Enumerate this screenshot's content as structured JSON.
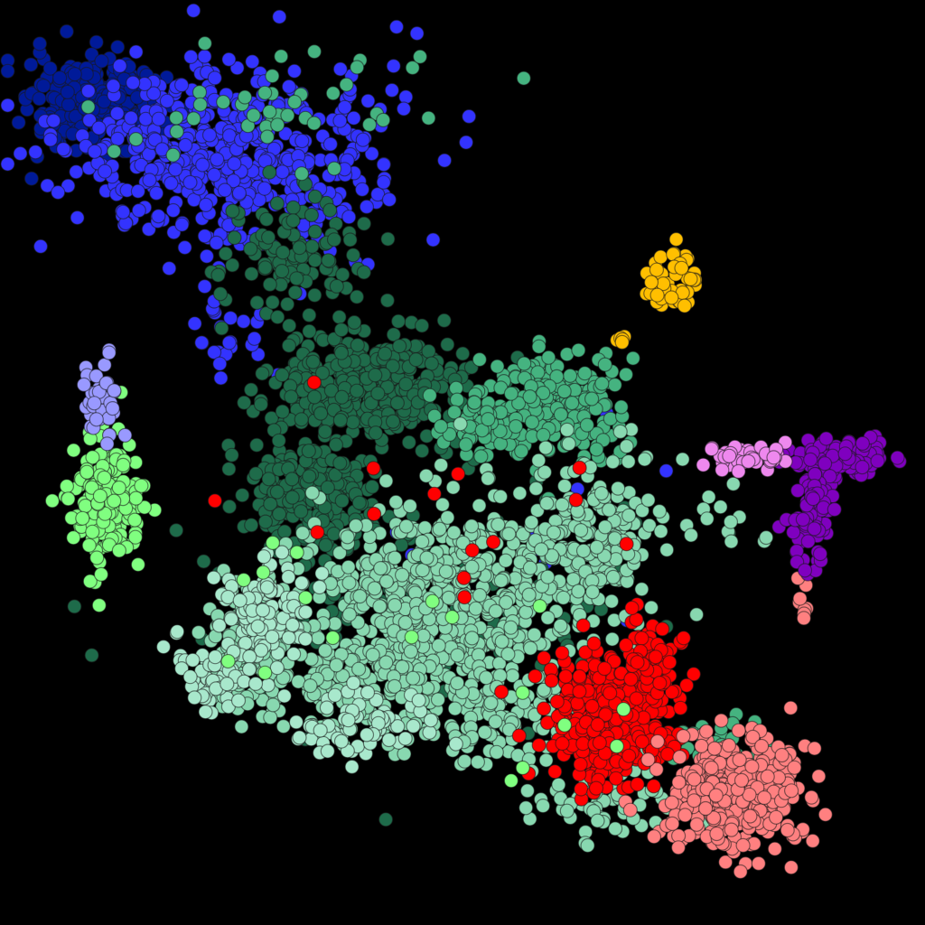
{
  "chart_data": {
    "type": "scatter",
    "title": "",
    "xlabel": "",
    "ylabel": "",
    "grid": false,
    "legend": "none",
    "axes_visible": false,
    "background": "#000000",
    "xlim": [
      0,
      100
    ],
    "ylim": [
      0,
      100
    ],
    "point_style": "dense overlapping circular markers with thin dark outlines",
    "series": [
      {
        "color": "#001a99",
        "clusters": [
          {
            "cx": 10.5,
            "cy": 88.5,
            "sx": 3.6,
            "sy": 2.6,
            "count": 260
          }
        ]
      },
      {
        "color": "#3333ff",
        "clusters": [
          {
            "cx": 24.0,
            "cy": 83.0,
            "sx": 8.5,
            "sy": 4.8,
            "count": 520
          },
          {
            "cx": 25.0,
            "cy": 64.0,
            "sx": 3.0,
            "sy": 2.5,
            "count": 25
          },
          {
            "cx": 55.0,
            "cy": 45.0,
            "sx": 10.0,
            "sy": 7.0,
            "count": 12
          }
        ]
      },
      {
        "color": "#1e6b4a",
        "clusters": [
          {
            "cx": 40.5,
            "cy": 58.5,
            "sx": 5.0,
            "sy": 3.2,
            "count": 360
          },
          {
            "cx": 33.0,
            "cy": 47.0,
            "sx": 3.5,
            "sy": 3.0,
            "count": 200
          },
          {
            "cx": 32.0,
            "cy": 72.0,
            "sx": 4.0,
            "sy": 4.0,
            "count": 110
          },
          {
            "cx": 45.0,
            "cy": 36.0,
            "sx": 12.0,
            "sy": 6.0,
            "count": 130
          }
        ]
      },
      {
        "color": "#45b380",
        "clusters": [
          {
            "cx": 60.5,
            "cy": 56.5,
            "sx": 3.2,
            "sy": 2.6,
            "count": 240
          },
          {
            "cx": 52.5,
            "cy": 54.5,
            "sx": 2.5,
            "sy": 1.8,
            "count": 70
          },
          {
            "cx": 78.0,
            "cy": 20.0,
            "sx": 2.5,
            "sy": 2.0,
            "count": 30
          },
          {
            "cx": 30.0,
            "cy": 88.0,
            "sx": 8.0,
            "sy": 3.5,
            "count": 45
          }
        ]
      },
      {
        "color": "#88d8b0",
        "clusters": [
          {
            "cx": 47.5,
            "cy": 34.5,
            "sx": 7.5,
            "sy": 5.2,
            "count": 620
          },
          {
            "cx": 63.5,
            "cy": 42.0,
            "sx": 3.5,
            "sy": 4.5,
            "count": 210
          },
          {
            "cx": 38.0,
            "cy": 26.0,
            "sx": 6.0,
            "sy": 3.0,
            "count": 160
          },
          {
            "cx": 26.5,
            "cy": 30.0,
            "sx": 2.5,
            "sy": 3.0,
            "count": 120
          },
          {
            "cx": 53.0,
            "cy": 22.0,
            "sx": 5.0,
            "sy": 3.0,
            "count": 110
          },
          {
            "cx": 66.0,
            "cy": 13.0,
            "sx": 4.0,
            "sy": 2.0,
            "count": 55
          },
          {
            "cx": 74.0,
            "cy": 44.0,
            "sx": 5.0,
            "sy": 2.0,
            "count": 20
          }
        ]
      },
      {
        "color": "#a8e8cc",
        "clusters": [
          {
            "cx": 29.0,
            "cy": 34.0,
            "sx": 2.5,
            "sy": 2.5,
            "count": 110
          },
          {
            "cx": 23.5,
            "cy": 27.5,
            "sx": 2.5,
            "sy": 2.0,
            "count": 60
          },
          {
            "cx": 38.0,
            "cy": 22.0,
            "sx": 4.0,
            "sy": 2.0,
            "count": 70
          }
        ]
      },
      {
        "color": "#ff0000",
        "clusters": [
          {
            "cx": 66.0,
            "cy": 22.0,
            "sx": 3.2,
            "sy": 3.5,
            "count": 360
          },
          {
            "cx": 70.5,
            "cy": 28.5,
            "sx": 1.5,
            "sy": 2.5,
            "count": 70
          },
          {
            "cx": 48.0,
            "cy": 43.0,
            "sx": 12.0,
            "sy": 8.0,
            "count": 18
          }
        ]
      },
      {
        "color": "#ff8080",
        "clusters": [
          {
            "cx": 79.5,
            "cy": 14.5,
            "sx": 3.8,
            "sy": 3.2,
            "count": 360
          },
          {
            "cx": 86.8,
            "cy": 34.5,
            "sx": 0.3,
            "sy": 1.0,
            "count": 8
          }
        ]
      },
      {
        "color": "#80ff80",
        "clusters": [
          {
            "cx": 11.5,
            "cy": 46.0,
            "sx": 2.0,
            "sy": 3.2,
            "count": 210
          },
          {
            "cx": 45.0,
            "cy": 30.0,
            "sx": 15.0,
            "sy": 10.0,
            "count": 18
          }
        ]
      },
      {
        "color": "#9999ff",
        "clusters": [
          {
            "cx": 11.0,
            "cy": 56.5,
            "sx": 0.9,
            "sy": 2.0,
            "count": 45
          }
        ]
      },
      {
        "color": "#7f00bf",
        "clusters": [
          {
            "cx": 90.5,
            "cy": 50.5,
            "sx": 2.2,
            "sy": 1.0,
            "count": 120
          },
          {
            "cx": 87.5,
            "cy": 43.5,
            "sx": 1.2,
            "sy": 3.0,
            "count": 70
          }
        ]
      },
      {
        "color": "#ee88ee",
        "clusters": [
          {
            "cx": 80.5,
            "cy": 50.5,
            "sx": 2.5,
            "sy": 0.8,
            "count": 45
          }
        ]
      },
      {
        "color": "#ffbf00",
        "clusters": [
          {
            "cx": 72.5,
            "cy": 70.0,
            "sx": 1.6,
            "sy": 1.8,
            "count": 45
          },
          {
            "cx": 67.0,
            "cy": 63.5,
            "sx": 0.4,
            "sy": 0.4,
            "count": 5
          }
        ]
      }
    ]
  }
}
